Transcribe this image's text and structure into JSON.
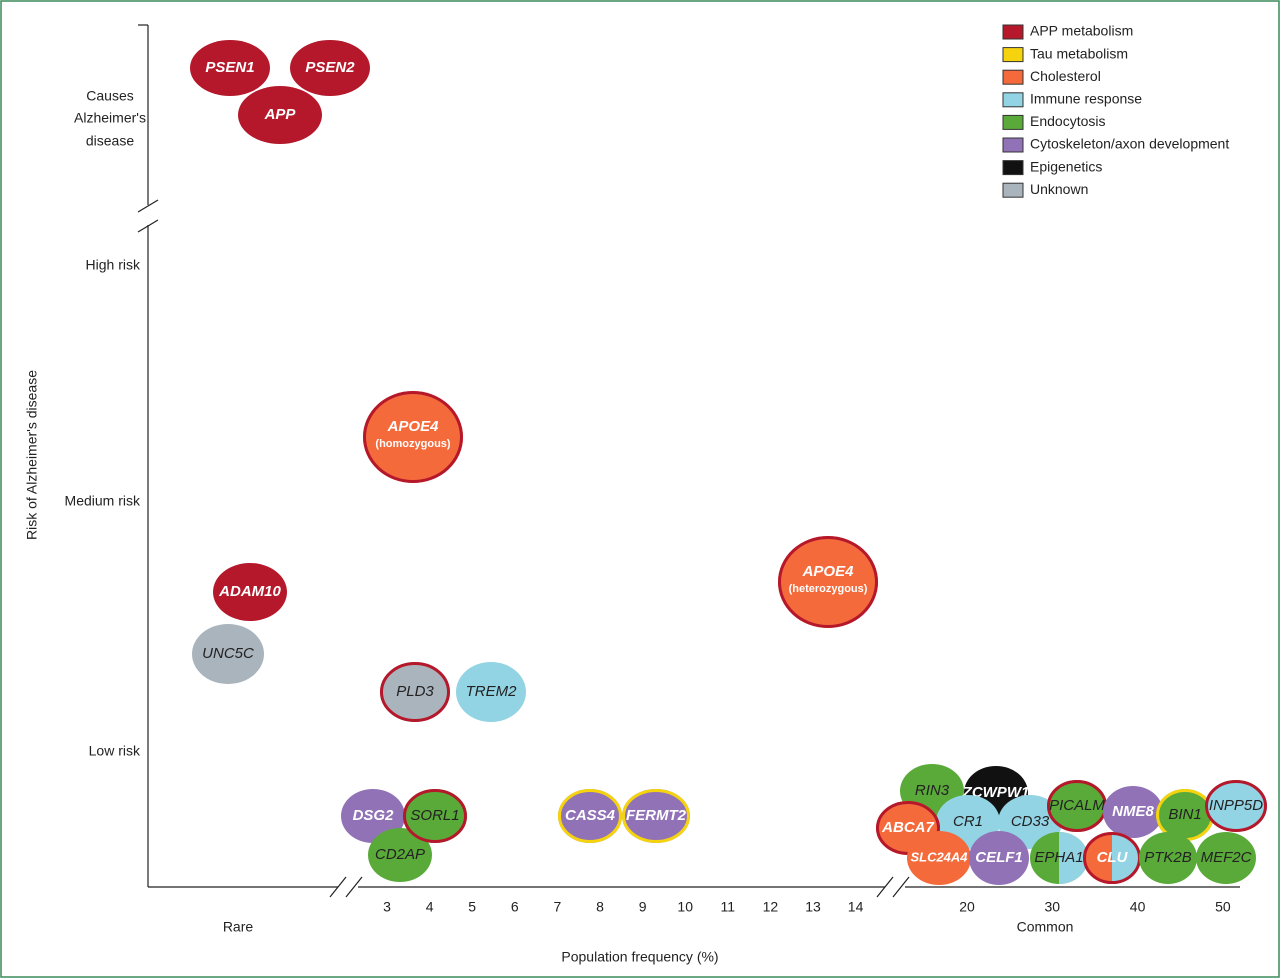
{
  "axes": {
    "y_title": "Risk of Alzheimer's disease",
    "x_title": "Population frequency (%)",
    "y_levels": [
      [
        "Causes",
        "Alzheimer's",
        "disease"
      ],
      [
        "High risk"
      ],
      [
        "Medium risk"
      ],
      [
        "Low risk"
      ]
    ],
    "x_rare": "Rare",
    "x_common": "Common",
    "x_ticks_pct": [
      3,
      4,
      5,
      6,
      7,
      8,
      9,
      10,
      11,
      12,
      13,
      14
    ],
    "x_ticks_common": [
      20,
      30,
      40,
      50
    ]
  },
  "legend": [
    {
      "name": "APP metabolism",
      "color": "#b5182b"
    },
    {
      "name": "Tau metabolism",
      "color": "#f5d40f"
    },
    {
      "name": "Cholesterol",
      "color": "#f46a3b"
    },
    {
      "name": "Immune response",
      "color": "#92d3e4"
    },
    {
      "name": "Endocytosis",
      "color": "#5aaa3a"
    },
    {
      "name": "Cytoskeleton/axon development",
      "color": "#9172b6"
    },
    {
      "name": "Epigenetics",
      "color": "#111111"
    },
    {
      "name": "Unknown",
      "color": "#aab4bc"
    }
  ],
  "nodes": [
    {
      "label": "PSEN1",
      "group": 0
    },
    {
      "label": "PSEN2",
      "group": 0
    },
    {
      "label": "APP",
      "group": 0
    },
    {
      "label": "APOE4",
      "sublabel": "(homozygous)",
      "group": 2,
      "ring": 0
    },
    {
      "label": "APOE4",
      "sublabel": "(heterozygous)",
      "group": 2,
      "ring": 0
    },
    {
      "label": "ADAM10",
      "group": 0
    },
    {
      "label": "UNC5C",
      "group": 7
    },
    {
      "label": "PLD3",
      "group": 7,
      "ring": 0
    },
    {
      "label": "TREM2",
      "group": 3
    },
    {
      "label": "DSG2",
      "group": 5
    },
    {
      "label": "CD2AP",
      "group": 4
    },
    {
      "label": "SORL1",
      "group": 4,
      "ring": 0
    },
    {
      "label": "CASS4",
      "group": 5,
      "ring": 1
    },
    {
      "label": "FERMT2",
      "group": 5,
      "ring": 1
    },
    {
      "label": "RIN3",
      "group": 4
    },
    {
      "label": "ZCWPW1",
      "group": 6
    },
    {
      "label": "CR1",
      "group": 3
    },
    {
      "label": "CD33",
      "group": 3
    },
    {
      "label": "ABCA7",
      "group": 2,
      "ring": 0
    },
    {
      "label": "PICALM",
      "group": 4,
      "ring": 0
    },
    {
      "label": "NME8",
      "group": 5
    },
    {
      "label": "BIN1",
      "group": 4,
      "ring": 1
    },
    {
      "label": "INPP5D",
      "group": 3,
      "ring": 0
    },
    {
      "label": "SLC24A4",
      "group": 2
    },
    {
      "label": "CELF1",
      "group": 5
    },
    {
      "label": "EPHA1",
      "group": 4,
      "group2": 3
    },
    {
      "label": "CLU",
      "group": 2,
      "group2": 3,
      "ring": 0
    },
    {
      "label": "PTK2B",
      "group": 4
    },
    {
      "label": "MEF2C",
      "group": 4
    }
  ]
}
